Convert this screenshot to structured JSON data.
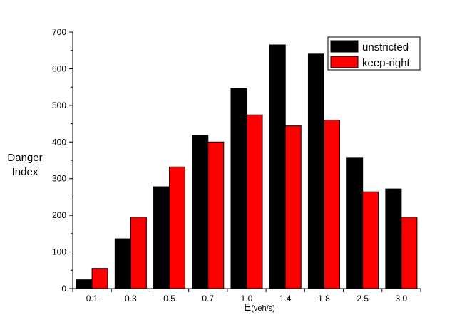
{
  "chart_data": {
    "type": "bar",
    "categories": [
      "0.1",
      "0.3",
      "0.5",
      "0.7",
      "1.0",
      "1.4",
      "1.8",
      "2.5",
      "3.0"
    ],
    "series": [
      {
        "name": "unstricted",
        "color": "#000000",
        "values": [
          24,
          136,
          278,
          418,
          547,
          665,
          640,
          358,
          272
        ]
      },
      {
        "name": "keep-right",
        "color": "#ff0000",
        "values": [
          55,
          195,
          332,
          400,
          474,
          444,
          460,
          264,
          195
        ]
      }
    ],
    "title": "",
    "ylabel_lines": [
      "Danger",
      "Index"
    ],
    "xlabel": "E",
    "xlabel_unit": "(veh/s)",
    "ylim": [
      0,
      700
    ],
    "yticks": [
      0,
      100,
      200,
      300,
      400,
      500,
      600,
      700
    ],
    "grid": false,
    "legend_position": "top-right"
  }
}
